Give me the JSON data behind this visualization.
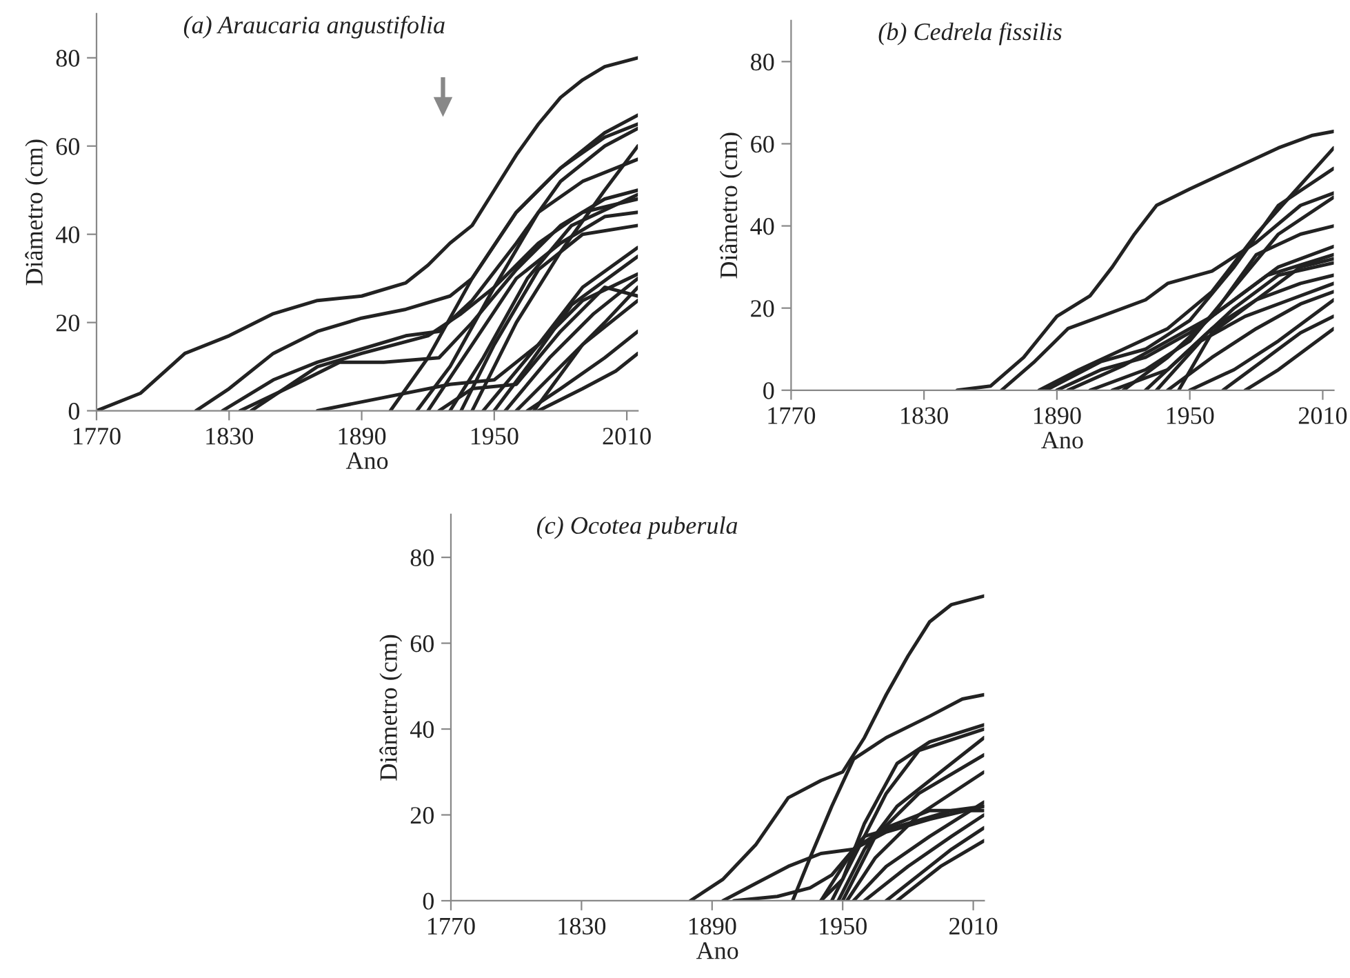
{
  "chart_data": [
    {
      "type": "line",
      "title": "(a) Araucaria angustifolia",
      "xlabel": "Ano",
      "ylabel": "Diâmetro (cm)",
      "xlim": [
        1770,
        2015
      ],
      "ylim": [
        0,
        90
      ],
      "xticks": [
        1770,
        1830,
        1890,
        1950,
        2010
      ],
      "yticks": [
        0,
        20,
        40,
        60,
        80
      ],
      "series": [
        {
          "color": "#222222",
          "x": [
            1770,
            1790,
            1810,
            1830,
            1850,
            1870,
            1890,
            1910,
            1920,
            1930,
            1940,
            1950,
            1960,
            1970,
            1980,
            1990,
            2000,
            2015
          ],
          "values": [
            0,
            4,
            13,
            17,
            22,
            25,
            26,
            29,
            33,
            38,
            42,
            50,
            58,
            65,
            71,
            75,
            78,
            80
          ]
        },
        {
          "color": "#222222",
          "x": [
            1815,
            1830,
            1850,
            1870,
            1890,
            1910,
            1930,
            1940,
            1960,
            1980,
            2000,
            2015
          ],
          "values": [
            0,
            5,
            13,
            18,
            21,
            23,
            26,
            30,
            45,
            55,
            63,
            67
          ]
        },
        {
          "color": "#222222",
          "x": [
            1827,
            1850,
            1870,
            1890,
            1910,
            1925,
            1940,
            1960,
            1980,
            2000,
            2015
          ],
          "values": [
            0,
            7,
            11,
            14,
            17,
            18,
            25,
            38,
            52,
            60,
            64
          ]
        },
        {
          "color": "#222222",
          "x": [
            1835,
            1860,
            1880,
            1900,
            1925,
            1940,
            1960,
            1980,
            2000,
            2015
          ],
          "values": [
            0,
            6,
            11,
            11,
            12,
            20,
            32,
            42,
            48,
            50
          ]
        },
        {
          "color": "#222222",
          "x": [
            1840,
            1870,
            1890,
            1920,
            1935,
            1950,
            1970,
            1990,
            2015
          ],
          "values": [
            0,
            10,
            13,
            17,
            22,
            28,
            38,
            45,
            48
          ]
        },
        {
          "color": "#222222",
          "x": [
            1870,
            1900,
            1930,
            1950,
            1970,
            1990,
            2015
          ],
          "values": [
            0,
            3,
            6,
            7,
            15,
            25,
            31
          ]
        },
        {
          "color": "#222222",
          "x": [
            1903,
            1920,
            1940,
            1960,
            1980,
            2000,
            2015
          ],
          "values": [
            0,
            12,
            30,
            45,
            55,
            62,
            65
          ]
        },
        {
          "color": "#222222",
          "x": [
            1915,
            1930,
            1950,
            1970,
            1990,
            2015
          ],
          "values": [
            0,
            10,
            28,
            45,
            52,
            57
          ]
        },
        {
          "color": "#222222",
          "x": [
            1920,
            1940,
            1960,
            1980,
            2000,
            2015
          ],
          "values": [
            0,
            15,
            30,
            38,
            44,
            45
          ]
        },
        {
          "color": "#222222",
          "x": [
            1930,
            1945,
            1965,
            1985,
            2015
          ],
          "values": [
            0,
            12,
            30,
            42,
            49
          ]
        },
        {
          "color": "#222222",
          "x": [
            1935,
            1950,
            1970,
            1990,
            2015
          ],
          "values": [
            0,
            15,
            32,
            40,
            42
          ]
        },
        {
          "color": "#222222",
          "x": [
            1940,
            1960,
            1980,
            2000,
            2015
          ],
          "values": [
            0,
            20,
            36,
            50,
            60
          ]
        },
        {
          "color": "#222222",
          "x": [
            1945,
            1970,
            1990,
            2015
          ],
          "values": [
            0,
            15,
            28,
            37
          ]
        },
        {
          "color": "#222222",
          "x": [
            1950,
            1965,
            1985,
            2015
          ],
          "values": [
            0,
            10,
            24,
            35
          ]
        },
        {
          "color": "#222222",
          "x": [
            1955,
            1975,
            1995,
            2015
          ],
          "values": [
            0,
            12,
            22,
            30
          ]
        },
        {
          "color": "#222222",
          "x": [
            1960,
            1980,
            2000,
            2015
          ],
          "values": [
            0,
            10,
            20,
            28
          ]
        },
        {
          "color": "#222222",
          "x": [
            1965,
            1980,
            2000,
            2015
          ],
          "values": [
            0,
            5,
            12,
            18
          ]
        },
        {
          "color": "#222222",
          "x": [
            1970,
            1990,
            2005,
            2015
          ],
          "values": [
            0,
            5,
            9,
            13
          ]
        },
        {
          "color": "#222222",
          "x": [
            1925,
            1940,
            1960,
            1980,
            2000,
            2015
          ],
          "values": [
            0,
            5,
            6,
            18,
            28,
            26
          ]
        },
        {
          "color": "#222222",
          "x": [
            1968,
            1990,
            2015
          ],
          "values": [
            0,
            15,
            25
          ]
        }
      ]
    },
    {
      "type": "line",
      "title": "(b) Cedrela fissilis",
      "xlabel": "Ano",
      "ylabel": "Diâmetro (cm)",
      "xlim": [
        1770,
        2015
      ],
      "ylim": [
        0,
        90
      ],
      "xticks": [
        1770,
        1830,
        1890,
        1950,
        2010
      ],
      "yticks": [
        0,
        20,
        40,
        60,
        80
      ],
      "series": [
        {
          "color": "#222222",
          "x": [
            1845,
            1860,
            1875,
            1890,
            1905,
            1915,
            1925,
            1935,
            1950,
            1970,
            1990,
            2005,
            2015
          ],
          "values": [
            0,
            1,
            8,
            18,
            23,
            30,
            38,
            45,
            49,
            54,
            59,
            62,
            63
          ]
        },
        {
          "color": "#222222",
          "x": [
            1865,
            1880,
            1895,
            1910,
            1930,
            1940,
            1960,
            1980,
            2000,
            2015
          ],
          "values": [
            0,
            7,
            15,
            18,
            22,
            26,
            29,
            36,
            45,
            48
          ]
        },
        {
          "color": "#222222",
          "x": [
            1882,
            1900,
            1920,
            1940,
            1960,
            1980,
            2000,
            2015
          ],
          "values": [
            0,
            5,
            10,
            15,
            24,
            38,
            50,
            59
          ]
        },
        {
          "color": "#222222",
          "x": [
            1885,
            1910,
            1930,
            1950,
            1970,
            1990,
            2015
          ],
          "values": [
            0,
            7,
            10,
            17,
            30,
            45,
            54
          ]
        },
        {
          "color": "#222222",
          "x": [
            1890,
            1910,
            1930,
            1950,
            1970,
            1990,
            2015
          ],
          "values": [
            0,
            5,
            8,
            14,
            22,
            30,
            35
          ]
        },
        {
          "color": "#222222",
          "x": [
            1895,
            1920,
            1940,
            1960,
            1985,
            2015
          ],
          "values": [
            0,
            6,
            12,
            18,
            28,
            33
          ]
        },
        {
          "color": "#222222",
          "x": [
            1905,
            1930,
            1950,
            1970,
            1990,
            2015
          ],
          "values": [
            0,
            5,
            12,
            25,
            38,
            47
          ]
        },
        {
          "color": "#222222",
          "x": [
            1915,
            1940,
            1960,
            1980,
            2000,
            2015
          ],
          "values": [
            0,
            5,
            15,
            22,
            30,
            32
          ]
        },
        {
          "color": "#222222",
          "x": [
            1920,
            1940,
            1960,
            1980,
            2000,
            2015
          ],
          "values": [
            0,
            8,
            18,
            33,
            38,
            40
          ]
        },
        {
          "color": "#222222",
          "x": [
            1930,
            1950,
            1970,
            1990,
            2015
          ],
          "values": [
            0,
            10,
            20,
            28,
            31
          ]
        },
        {
          "color": "#222222",
          "x": [
            1935,
            1955,
            1975,
            1995,
            2015
          ],
          "values": [
            0,
            12,
            18,
            22,
            26
          ]
        },
        {
          "color": "#222222",
          "x": [
            1940,
            1960,
            1980,
            2000,
            2015
          ],
          "values": [
            0,
            8,
            15,
            21,
            24
          ]
        },
        {
          "color": "#222222",
          "x": [
            1950,
            1970,
            1990,
            2015
          ],
          "values": [
            0,
            5,
            12,
            22
          ]
        },
        {
          "color": "#222222",
          "x": [
            1965,
            1985,
            2000,
            2015
          ],
          "values": [
            0,
            8,
            14,
            18
          ]
        },
        {
          "color": "#222222",
          "x": [
            1975,
            1990,
            2005,
            2015
          ],
          "values": [
            0,
            5,
            11,
            15
          ]
        },
        {
          "color": "#222222",
          "x": [
            1945,
            1960,
            1980,
            2000,
            2015
          ],
          "values": [
            0,
            14,
            22,
            26,
            28
          ]
        }
      ]
    },
    {
      "type": "line",
      "title": "(c) Ocotea puberula",
      "xlabel": "Ano",
      "ylabel": "Diâmetro (cm)",
      "xlim": [
        1770,
        2015
      ],
      "ylim": [
        0,
        90
      ],
      "xticks": [
        1770,
        1830,
        1890,
        1950,
        2010
      ],
      "yticks": [
        0,
        20,
        40,
        60,
        80
      ],
      "series": [
        {
          "color": "#222222",
          "x": [
            1880,
            1895,
            1910,
            1925,
            1940,
            1950,
            1960,
            1970,
            1980,
            1990,
            2000,
            2015
          ],
          "values": [
            0,
            5,
            13,
            24,
            28,
            30,
            38,
            48,
            57,
            65,
            69,
            71
          ]
        },
        {
          "color": "#222222",
          "x": [
            1895,
            1910,
            1925,
            1940,
            1955,
            1960,
            1980,
            2000,
            2015
          ],
          "values": [
            0,
            4,
            8,
            11,
            12,
            15,
            18,
            21,
            22
          ]
        },
        {
          "color": "#222222",
          "x": [
            1927,
            1935,
            1945,
            1955,
            1970,
            1990,
            2005,
            2015
          ],
          "values": [
            0,
            10,
            22,
            33,
            38,
            43,
            47,
            48
          ]
        },
        {
          "color": "#222222",
          "x": [
            1900,
            1920,
            1935,
            1945,
            1955,
            1970,
            1990,
            2015
          ],
          "values": [
            0,
            1,
            3,
            6,
            12,
            17,
            21,
            21
          ]
        },
        {
          "color": "#222222",
          "x": [
            1940,
            1950,
            1960,
            1975,
            1990,
            2015
          ],
          "values": [
            0,
            5,
            18,
            32,
            37,
            41
          ]
        },
        {
          "color": "#222222",
          "x": [
            1945,
            1955,
            1970,
            1985,
            2015
          ],
          "values": [
            0,
            10,
            25,
            35,
            40
          ]
        },
        {
          "color": "#222222",
          "x": [
            1948,
            1960,
            1975,
            1995,
            2015
          ],
          "values": [
            0,
            12,
            22,
            30,
            38
          ]
        },
        {
          "color": "#222222",
          "x": [
            1950,
            1965,
            1985,
            2015
          ],
          "values": [
            0,
            15,
            25,
            34
          ]
        },
        {
          "color": "#222222",
          "x": [
            1952,
            1965,
            1985,
            2015
          ],
          "values": [
            0,
            10,
            20,
            30
          ]
        },
        {
          "color": "#222222",
          "x": [
            1955,
            1970,
            1990,
            2015
          ],
          "values": [
            0,
            8,
            15,
            23
          ]
        },
        {
          "color": "#222222",
          "x": [
            1960,
            1980,
            2000,
            2015
          ],
          "values": [
            0,
            8,
            15,
            20
          ]
        },
        {
          "color": "#222222",
          "x": [
            1970,
            1985,
            2000,
            2015
          ],
          "values": [
            0,
            6,
            12,
            17
          ]
        },
        {
          "color": "#222222",
          "x": [
            1975,
            1995,
            2015
          ],
          "values": [
            0,
            8,
            14
          ]
        },
        {
          "color": "#222222",
          "x": [
            1940,
            1955,
            1970,
            1990,
            2015
          ],
          "values": [
            0,
            12,
            16,
            19,
            22
          ]
        }
      ]
    }
  ]
}
